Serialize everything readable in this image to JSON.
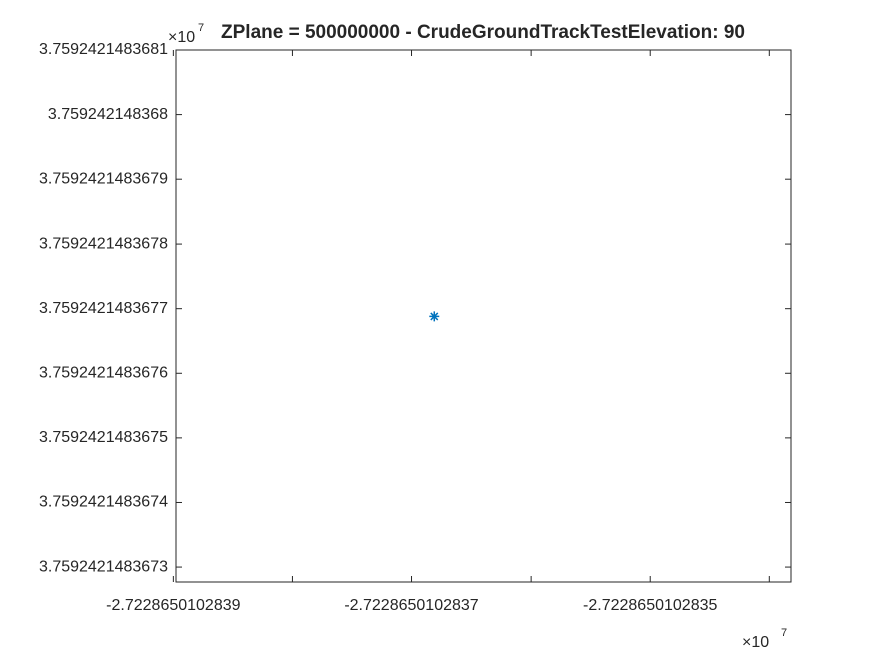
{
  "chart_data": {
    "type": "scatter",
    "title": "ZPlane = 500000000 - CrudeGroundTrackTestElevation: 90",
    "x": [
      -2.722865010283681
    ],
    "y": [
      3.759242148367688
    ],
    "color": "#0072bd",
    "marker": "asterisk",
    "xlim": [
      -2.722865010283898,
      -2.722865010283382
    ],
    "xticks": [
      -2.7228650102839,
      -2.7228650102837,
      -2.7228650102835
    ],
    "xminorticks": [
      -2.7228650102838,
      -2.7228650102836,
      -2.7228650102834
    ],
    "ylim": [
      3.759242148367277,
      3.7592421483681
    ],
    "yticks": [
      3.7592421483673,
      3.7592421483674,
      3.7592421483675,
      3.7592421483676,
      3.7592421483677,
      3.7592421483678,
      3.7592421483679,
      3.759242148368,
      3.7592421483681
    ],
    "x_multiplier": "×10",
    "x_exponent": 7,
    "y_multiplier": "×10",
    "y_exponent": 7,
    "grid": false
  }
}
